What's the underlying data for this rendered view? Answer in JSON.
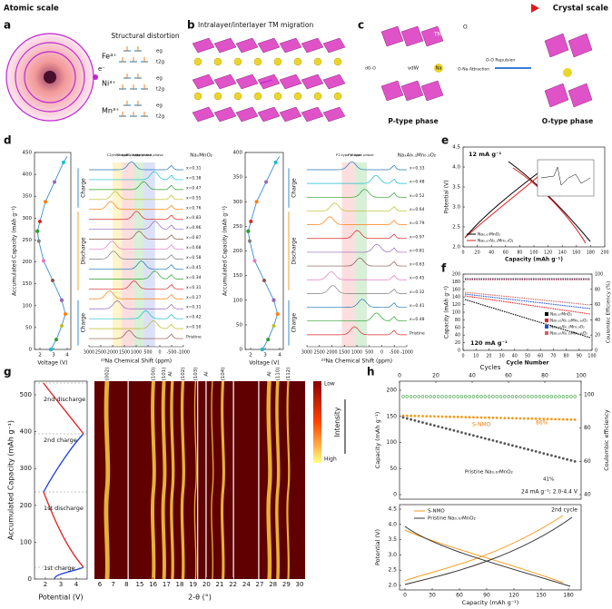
{
  "header": {
    "left": "Atomic scale",
    "right": "Crystal scale"
  },
  "panel_a": {
    "label": "a",
    "title": "Structural distortion",
    "electron": "e⁻",
    "ions": [
      "Fe⁴⁺",
      "Ni³⁺",
      "Mn³⁺"
    ],
    "orbitals": [
      "eg",
      "t2g"
    ]
  },
  "panel_b": {
    "label": "b",
    "title": "Intralayer/interlayer TM migration"
  },
  "panel_c": {
    "label": "c",
    "labels": {
      "tm": "TM",
      "o": "O",
      "na": "Na",
      "vdw": "vdW",
      "attraction": "O-Na Attraction",
      "repulsion": "O-O Repulsion",
      "d": "dO-O"
    },
    "phases": [
      "P-type phase",
      "O-type phase"
    ]
  },
  "panel_d": {
    "label": "d",
    "left1": {
      "y_label": "Accumulated Capacity (mAh g⁻¹)",
      "y_ticks": [
        "0",
        "50",
        "100",
        "150",
        "200",
        "250",
        "300",
        "350",
        "400",
        "450"
      ],
      "x_label": "Voltage (V)",
      "x_ticks": [
        "2",
        "3",
        "4"
      ],
      "segments": [
        "Charge",
        "Discharge",
        "Charge"
      ]
    },
    "nmr1": {
      "compound": "NaₓMnO₂",
      "phases": [
        "C2/m phase",
        "P2-type phase",
        "P2'-type phase",
        "Hydrated phase"
      ],
      "x_label": "²³Na Chemical Shift (ppm)",
      "x_ticks": [
        "3000",
        "2500",
        "2000",
        "1500",
        "1000",
        "500",
        "0",
        "-500",
        "-1000"
      ],
      "traces": [
        "x=0.31",
        "x=0.38",
        "x=0.47",
        "x=0.55",
        "x=0.76",
        "x=0.83",
        "x=0.96",
        "x=0.87",
        "x=0.68",
        "x=0.58",
        "x=0.45",
        "x=0.34",
        "x=0.31",
        "x=0.27",
        "x=0.31",
        "x=0.42",
        "x=0.50",
        "Pristine"
      ]
    },
    "left2": {
      "y_label": "Accumulated Capacity (mAh g⁻¹)",
      "y_ticks": [
        "0",
        "50",
        "100",
        "150",
        "200",
        "250",
        "300",
        "350",
        "400"
      ],
      "x_label": "Voltage (V)",
      "x_ticks": [
        "2",
        "3",
        "4"
      ],
      "segments": [
        "Charge",
        "Discharge",
        "Charge"
      ]
    },
    "nmr2": {
      "compound": "NaₓAl₀.₁Mn₀.₉O₂",
      "phases": [
        "P2-type phase",
        "P2'-type phase"
      ],
      "x_label": "²³Na Chemical Shift (ppm)",
      "x_ticks": [
        "3000",
        "2500",
        "2000",
        "1500",
        "1000",
        "500",
        "0",
        "-500",
        "-1000"
      ],
      "traces": [
        "x=0.33",
        "x=0.48",
        "x=0.52",
        "x=0.64",
        "x=0.79",
        "x=0.97",
        "x=0.81",
        "x=0.63",
        "x=0.45",
        "x=0.32",
        "x=0.41",
        "x=0.48",
        "Pristine"
      ]
    }
  },
  "panel_e": {
    "label": "e",
    "rate": "12 mA g⁻¹",
    "y_label": "Potential (V)",
    "y_ticks": [
      "2.0",
      "2.5",
      "3.0",
      "3.5",
      "4.0",
      "4.5"
    ],
    "x_label": "Capacity (mAh g⁻¹)",
    "x_ticks": [
      "0",
      "20",
      "40",
      "60",
      "80",
      "100",
      "120",
      "140",
      "160",
      "180",
      "200"
    ],
    "legend": [
      "Na₀.₆₇MnO₂",
      "Na₀.₆₇Al₀.₁Mn₀.₉O₂"
    ]
  },
  "panel_f": {
    "label": "f",
    "rate": "120 mA g⁻¹",
    "y_label": "Capacity (mAh g⁻¹)",
    "y_ticks": [
      "0",
      "20",
      "40",
      "60",
      "80",
      "100",
      "120",
      "140",
      "160",
      "180",
      "200"
    ],
    "y2_label": "Coulombic Efficiency (%)",
    "y2_ticks": [
      "0",
      "20",
      "40",
      "60",
      "80",
      "100"
    ],
    "x_label": "Cycle Number",
    "x_ticks": [
      "0",
      "10",
      "20",
      "30",
      "40",
      "50",
      "60",
      "70",
      "80",
      "90",
      "100"
    ],
    "legend": [
      "Na₀.₆₇MnO₂",
      "Na₀.₆₇Al₀.₀₅Mn₀.₉₅O₂",
      "Na₀.₆₇Al₀.₁Mn₀.₉O₂",
      "Na₀.₆₇Al₀.₁₅Mn₀.₈₅O₂"
    ]
  },
  "panel_g": {
    "label": "g",
    "y_label": "Accumulated Capacity (mAh g⁻¹)",
    "y_ticks": [
      "0",
      "100",
      "200",
      "300",
      "400",
      "500"
    ],
    "x_label": "Potential (V)",
    "x_ticks": [
      "2",
      "3",
      "4"
    ],
    "steps": [
      "1st charge",
      "1st discharge",
      "2nd charge",
      "2nd discharge"
    ],
    "peaks": [
      "(002)",
      "(100)",
      "(101)",
      "Al",
      "(102)",
      "(103)",
      "Al",
      "(104)",
      "Al",
      "(110)",
      "(112)"
    ],
    "x2_ticks": [
      "6",
      "7",
      "8",
      "15",
      "16",
      "17",
      "18",
      "19",
      "20",
      "21",
      "22",
      "24",
      "27",
      "28",
      "29",
      "30"
    ],
    "x2_label": "2-θ (°)",
    "colorbar": {
      "low": "Low",
      "high": "High",
      "label": "Intensity"
    }
  },
  "panel_h": {
    "label": "h",
    "x_label_top": "Cycles",
    "x_ticks_top": [
      "0",
      "20",
      "40",
      "60",
      "80",
      "100"
    ],
    "y_label_top": "Capacity (mAh g⁻¹)",
    "y_ticks_top": [
      "0",
      "50",
      "100",
      "150",
      "200"
    ],
    "y2_label": "Coulombic efficiency",
    "y2_ticks": [
      "40",
      "60",
      "80",
      "100"
    ],
    "annotations": [
      "S-NMO",
      "86%",
      "Pristine Na₀.₆₇MnO₂",
      "41%",
      "24 mA g⁻¹; 2.0-4.4 V"
    ],
    "legend": [
      "S-NMO",
      "Pristine Na₀.₆₇MnO₂"
    ],
    "cycle": "2nd cycle",
    "y_label_bottom": "Potential (V)",
    "y_ticks_bottom": [
      "2.0",
      "2.5",
      "3.0",
      "3.5",
      "4.0",
      "4.5"
    ],
    "x_label_bottom": "Capacity (mAh g⁻¹)",
    "x_ticks_bottom": [
      "0",
      "30",
      "60",
      "90",
      "120",
      "150",
      "180"
    ]
  }
}
